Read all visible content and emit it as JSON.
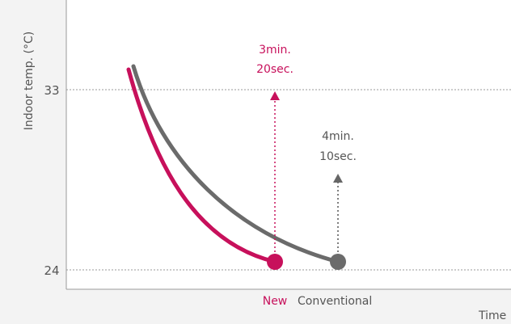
{
  "chart_data": {
    "type": "line",
    "title": "",
    "ylabel": "Indoor temp. (°C)",
    "xlabel": "Time",
    "y_ticks": [
      "33",
      "24"
    ],
    "reference_lines": [
      33,
      24
    ],
    "series": [
      {
        "name": "New",
        "color": "#c7105b",
        "end_marker": true,
        "time_label": [
          "3min.",
          "20sec."
        ]
      },
      {
        "name": "Conventional",
        "color": "#6b6b6b",
        "end_marker": true,
        "time_label": [
          "4min.",
          "10sec."
        ]
      }
    ]
  },
  "colors": {
    "background": "#f3f3f3",
    "plot_area": "#ffffff",
    "axis": "#999999",
    "grid": "#999999",
    "text": "#555555"
  }
}
